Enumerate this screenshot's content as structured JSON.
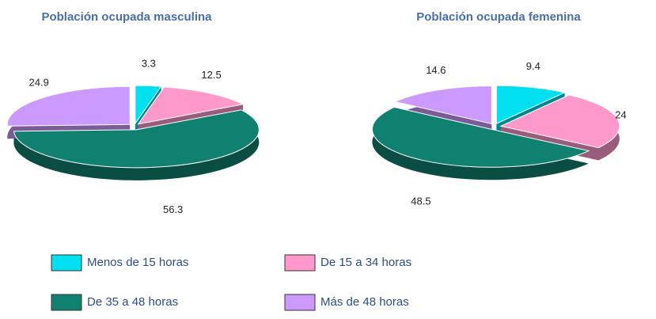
{
  "chart_data": [
    {
      "type": "pie",
      "title": "Población ocupada masculina",
      "categories": [
        "Menos de 15 horas",
        "De 15 a 34 horas",
        "De 35 a 48 horas",
        "Más de 48 horas"
      ],
      "values": [
        3.3,
        12.5,
        56.3,
        24.9
      ],
      "colors": [
        "#00e0f0",
        "#ff99cc",
        "#108070",
        "#cc99ff"
      ]
    },
    {
      "type": "pie",
      "title": "Población ocupada femenina",
      "categories": [
        "Menos de 15 horas",
        "De 15 a 34 horas",
        "De 35 a 48 horas",
        "Más de 48 horas"
      ],
      "values": [
        9.4,
        24,
        48.5,
        14.6
      ],
      "colors": [
        "#00e0f0",
        "#ff99cc",
        "#108070",
        "#cc99ff"
      ]
    }
  ]
}
